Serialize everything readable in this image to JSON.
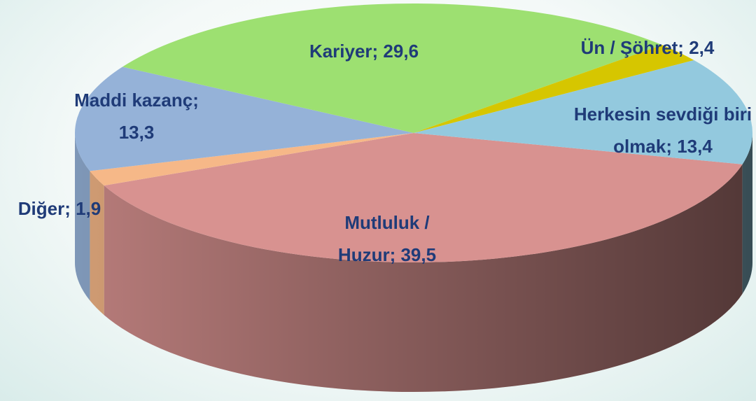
{
  "chart_data": {
    "type": "pie3d",
    "values": [
      39.5,
      1.9,
      13.3,
      29.6,
      2.4,
      13.4
    ],
    "value_labels": [
      "Mutluluk / Huzur; 39,5",
      "Diğer; 1,9",
      "Maddi kazanç; 13,3",
      "Kariyer; 29,6",
      "Ün / Şöhret; 2,4",
      "Herkesin sevdiği biri olmak; 13,4"
    ],
    "colors": [
      "#d89290",
      "#f6b888",
      "#95b2d8",
      "#9de071",
      "#d6c600",
      "#93c9de"
    ]
  }
}
